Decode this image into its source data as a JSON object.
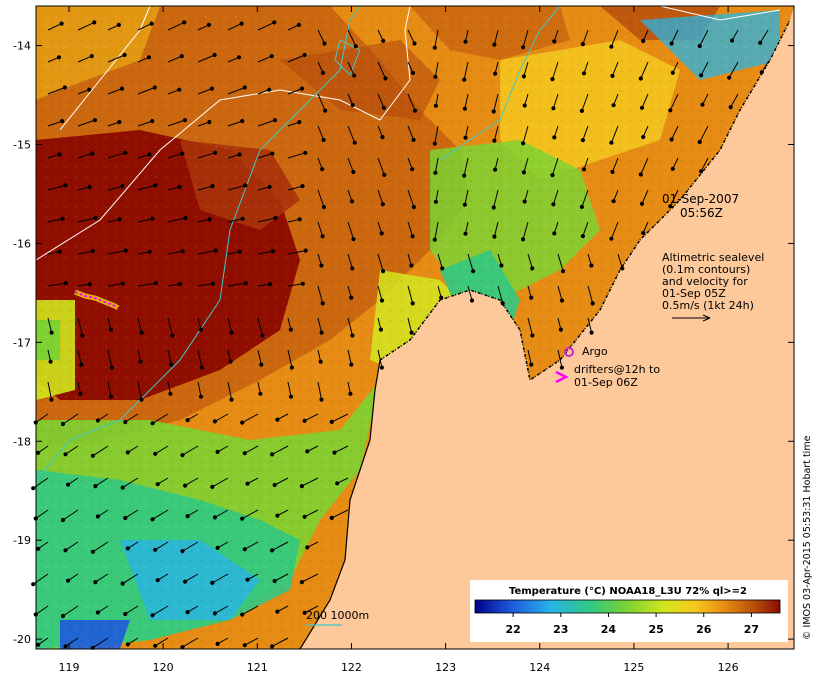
{
  "map": {
    "lon_ticks": [
      "119",
      "120",
      "121",
      "122",
      "123",
      "124",
      "125",
      "126"
    ],
    "lat_ticks": [
      "-14",
      "-15",
      "-16",
      "-17",
      "-18",
      "-19",
      "-20"
    ],
    "lon_range": [
      118.65,
      126.7
    ],
    "lat_range": [
      -20.1,
      -13.6
    ],
    "land_color": "#fdc99b",
    "sst_colors": [
      "#00008b",
      "#1e5adc",
      "#28b4e6",
      "#32c882",
      "#7dd232",
      "#d2e61e",
      "#f5c81e",
      "#e68c14",
      "#b44b0a",
      "#8b0a00"
    ]
  },
  "annotations": {
    "date_line1": "01-Sep-2007",
    "date_line2": "05:56Z",
    "altimetry_lines": [
      "Altimetric sealevel",
      "(0.1m contours)",
      "and velocity for",
      "01-Sep 05Z",
      "0.5m/s (1kt 24h)"
    ],
    "argo_label": "Argo",
    "drifters_line1": "drifters@12h to",
    "drifters_line2": "01-Sep 06Z",
    "depth_legend": "200  1000m"
  },
  "colorbar": {
    "title": "Temperature (°C) NOAA18_L3U 72% ql>=2",
    "ticks": [
      "22",
      "23",
      "24",
      "25",
      "26",
      "27"
    ]
  },
  "credit": "© IMOS 03-Apr-2015 05:53:31 Hobart time",
  "colors": {
    "argo": "#d020d0",
    "drifter": "#ff00ff",
    "contour_sealevel": "#ffffff",
    "contour_depth": "#40c8c8"
  }
}
